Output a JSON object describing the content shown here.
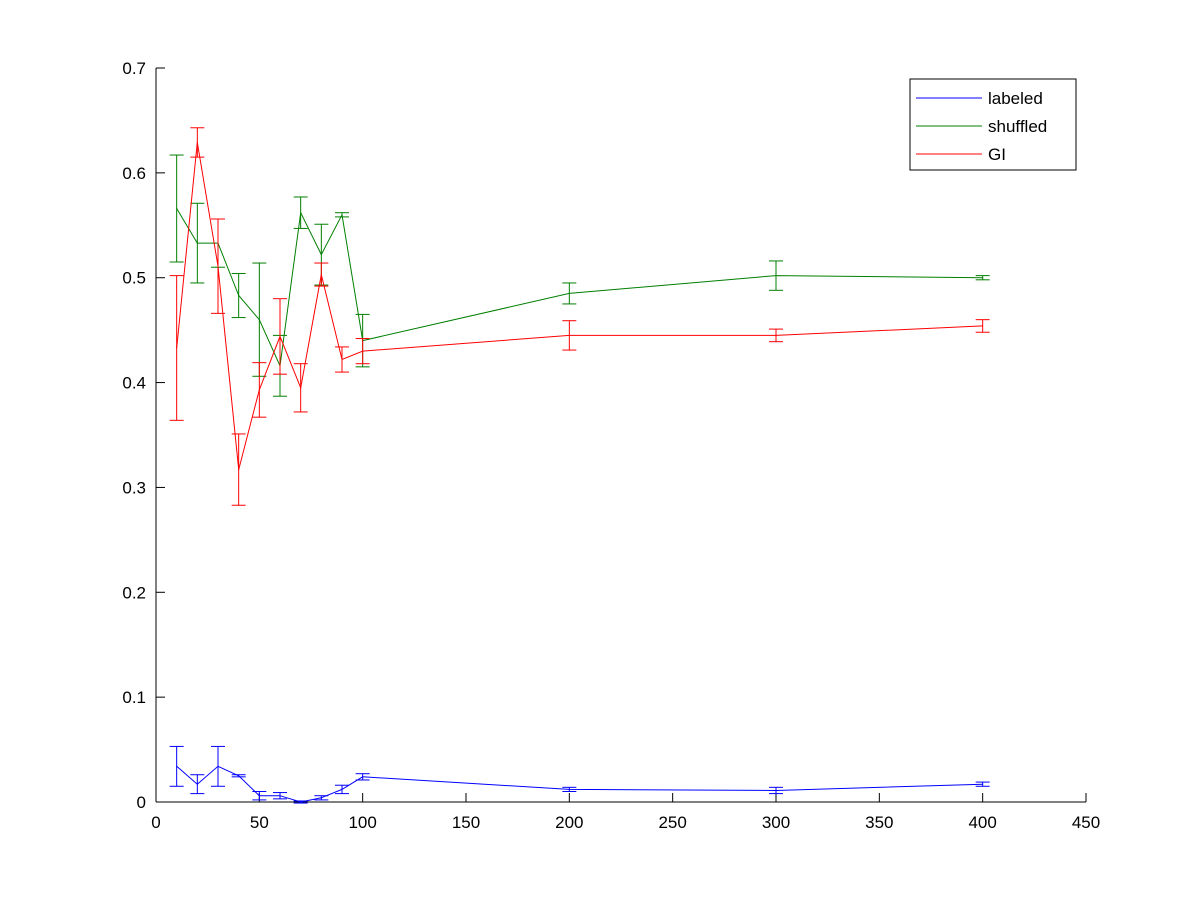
{
  "chart_data": {
    "type": "line",
    "title": "",
    "xlabel": "",
    "ylabel": "",
    "xlim": [
      0,
      450
    ],
    "ylim": [
      0,
      0.7
    ],
    "xticks": [
      0,
      50,
      100,
      150,
      200,
      250,
      300,
      350,
      400,
      450
    ],
    "yticks": [
      0,
      0.1,
      0.2,
      0.3,
      0.4,
      0.5,
      0.6,
      0.7
    ],
    "xtick_labels": [
      "0",
      "50",
      "100",
      "150",
      "200",
      "250",
      "300",
      "350",
      "400",
      "450"
    ],
    "ytick_labels": [
      "0",
      "0.1",
      "0.2",
      "0.3",
      "0.4",
      "0.5",
      "0.6",
      "0.7"
    ],
    "grid": false,
    "legend_position": "top-right",
    "x": [
      10,
      20,
      30,
      40,
      50,
      60,
      70,
      80,
      90,
      100,
      200,
      300,
      400
    ],
    "series": [
      {
        "name": "labeled",
        "color": "#0000ff",
        "values": [
          0.034,
          0.017,
          0.034,
          0.025,
          0.006,
          0.006,
          0.0,
          0.004,
          0.012,
          0.024,
          0.012,
          0.011,
          0.017
        ],
        "errors": [
          0.019,
          0.009,
          0.019,
          0.001,
          0.004,
          0.003,
          0.001,
          0.002,
          0.004,
          0.003,
          0.002,
          0.003,
          0.002
        ]
      },
      {
        "name": "shuffled",
        "color": "#007f00",
        "values": [
          0.566,
          0.533,
          0.533,
          0.483,
          0.46,
          0.416,
          0.562,
          0.522,
          0.56,
          0.44,
          0.485,
          0.502,
          0.5
        ],
        "errors": [
          0.051,
          0.038,
          0.023,
          0.021,
          0.054,
          0.029,
          0.015,
          0.029,
          0.002,
          0.025,
          0.01,
          0.014,
          0.002
        ]
      },
      {
        "name": "GI",
        "color": "#ff0000",
        "values": [
          0.433,
          0.629,
          0.511,
          0.317,
          0.393,
          0.444,
          0.395,
          0.503,
          0.422,
          0.43,
          0.445,
          0.445,
          0.454
        ],
        "errors": [
          0.069,
          0.014,
          0.045,
          0.034,
          0.026,
          0.036,
          0.023,
          0.011,
          0.012,
          0.012,
          0.014,
          0.006,
          0.006
        ]
      }
    ]
  }
}
